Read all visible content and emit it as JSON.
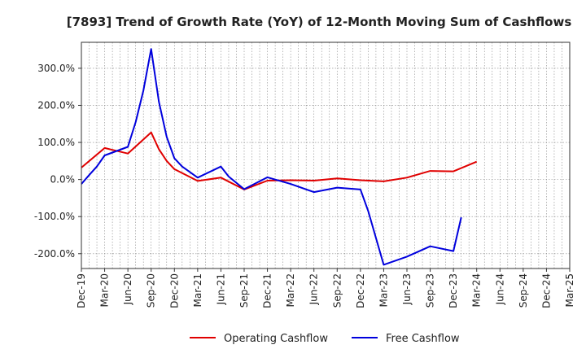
{
  "chart_data": {
    "type": "line",
    "title": "[7893]  Trend of Growth Rate (YoY) of 12-Month Moving Sum of Cashflows",
    "xlabel": "",
    "ylabel": "",
    "x_tick_labels": [
      "Dec-19",
      "Mar-20",
      "Jun-20",
      "Sep-20",
      "Dec-20",
      "Mar-21",
      "Jun-21",
      "Sep-21",
      "Dec-21",
      "Mar-22",
      "Jun-22",
      "Sep-22",
      "Dec-22",
      "Mar-23",
      "Jun-23",
      "Sep-23",
      "Dec-23",
      "Mar-24",
      "Jun-24",
      "Sep-24",
      "Dec-24",
      "Mar-25"
    ],
    "x_range_months": [
      0,
      63
    ],
    "y_ticks": [
      300,
      200,
      100,
      0,
      -100,
      -200
    ],
    "y_tick_labels": [
      "300.0%",
      "200.0%",
      "100.0%",
      "0.0%",
      "-100.0%",
      "-200.0%"
    ],
    "ylim": [
      -240,
      370
    ],
    "grid": true,
    "legend_position": "bottom",
    "series": [
      {
        "name": "Operating Cashflow",
        "color": "#e00000",
        "points": [
          {
            "x": "Dec-19",
            "y": 32
          },
          {
            "x": "Mar-20",
            "y": 85
          },
          {
            "x": "Apr-20",
            "y": 80
          },
          {
            "x": "Jun-20",
            "y": 70
          },
          {
            "x": "Sep-20",
            "y": 127
          },
          {
            "x": "Oct-20",
            "y": 82
          },
          {
            "x": "Nov-20",
            "y": 50
          },
          {
            "x": "Dec-20",
            "y": 28
          },
          {
            "x": "Mar-21",
            "y": -4
          },
          {
            "x": "Jun-21",
            "y": 5
          },
          {
            "x": "Sep-21",
            "y": -27
          },
          {
            "x": "Dec-21",
            "y": -3
          },
          {
            "x": "Mar-22",
            "y": -2
          },
          {
            "x": "Jun-22",
            "y": -3
          },
          {
            "x": "Sep-22",
            "y": 3
          },
          {
            "x": "Dec-22",
            "y": -2
          },
          {
            "x": "Mar-23",
            "y": -5
          },
          {
            "x": "Jun-23",
            "y": 5
          },
          {
            "x": "Sep-23",
            "y": 23
          },
          {
            "x": "Dec-23",
            "y": 22
          },
          {
            "x": "Mar-24",
            "y": 48
          }
        ]
      },
      {
        "name": "Free Cashflow",
        "color": "#0000dd",
        "points": [
          {
            "x": "Dec-19",
            "y": -12
          },
          {
            "x": "Jan-20",
            "y": 12
          },
          {
            "x": "Feb-20",
            "y": 35
          },
          {
            "x": "Mar-20",
            "y": 65
          },
          {
            "x": "Jun-20",
            "y": 88
          },
          {
            "x": "Jul-20",
            "y": 155
          },
          {
            "x": "Aug-20",
            "y": 240
          },
          {
            "x": "Sep-20",
            "y": 352
          },
          {
            "x": "Oct-20",
            "y": 210
          },
          {
            "x": "Nov-20",
            "y": 115
          },
          {
            "x": "Dec-20",
            "y": 57
          },
          {
            "x": "Jan-21",
            "y": 35
          },
          {
            "x": "Mar-21",
            "y": 5
          },
          {
            "x": "Jun-21",
            "y": 35
          },
          {
            "x": "Jul-21",
            "y": 8
          },
          {
            "x": "Sep-21",
            "y": -26
          },
          {
            "x": "Dec-21",
            "y": 6
          },
          {
            "x": "Mar-22",
            "y": -12
          },
          {
            "x": "Jun-22",
            "y": -34
          },
          {
            "x": "Sep-22",
            "y": -22
          },
          {
            "x": "Dec-22",
            "y": -27
          },
          {
            "x": "Jan-23",
            "y": -85
          },
          {
            "x": "Mar-23",
            "y": -230
          },
          {
            "x": "Jun-23",
            "y": -208
          },
          {
            "x": "Sep-23",
            "y": -180
          },
          {
            "x": "Dec-23",
            "y": -193
          },
          {
            "x": "Jan-24",
            "y": -102
          }
        ]
      }
    ]
  }
}
